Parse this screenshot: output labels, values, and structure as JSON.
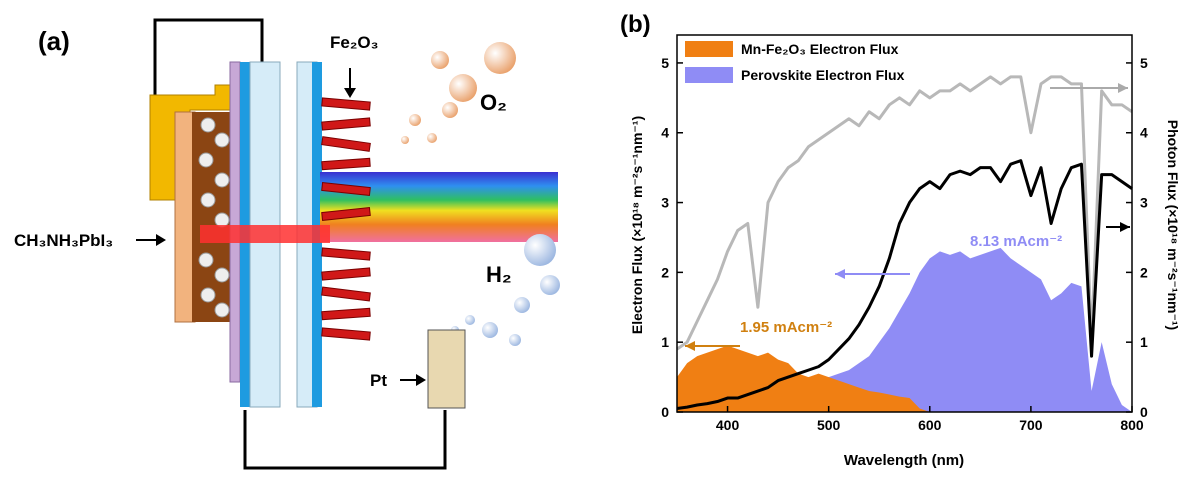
{
  "panel_a": {
    "label": "(a)",
    "fe2o3": "Fe₂O₃",
    "o2": "O₂",
    "h2": "H₂",
    "perovskite": "CH₃NH₃PbI₃",
    "pt": "Pt"
  },
  "chart_data": {
    "type": "line",
    "panel_label": "(b)",
    "x_label": "Wavelength (nm)",
    "y_label": "Electron Flux (×10¹⁸ m⁻²s⁻¹nm⁻¹)",
    "y2_label": "Photon Flux (×10¹⁸ m⁻²s⁻¹nm⁻¹)",
    "annotations": [
      "1.95 mAcm⁻²",
      "8.13 mAcm⁻²"
    ],
    "x": [
      350,
      360,
      370,
      380,
      390,
      400,
      410,
      420,
      430,
      440,
      450,
      460,
      470,
      480,
      490,
      500,
      510,
      520,
      530,
      540,
      550,
      560,
      570,
      580,
      590,
      600,
      610,
      620,
      630,
      640,
      650,
      660,
      670,
      680,
      690,
      700,
      710,
      720,
      730,
      740,
      750,
      760,
      770,
      780,
      790,
      800
    ],
    "xlim": [
      350,
      800
    ],
    "xticks": [
      400,
      500,
      600,
      700,
      800
    ],
    "ylim": [
      0,
      5.4
    ],
    "yticks": [
      0,
      1,
      2,
      3,
      4,
      5
    ],
    "y2lim": [
      0,
      5.4
    ],
    "y2ticks": [
      0,
      1,
      2,
      3,
      4,
      5
    ],
    "legend": "upper left",
    "series": [
      {
        "name": "Mn-Fe₂O₃ Electron Flux",
        "color": "#f07f13",
        "style": "area",
        "values": [
          0.5,
          0.7,
          0.8,
          0.85,
          0.9,
          0.95,
          0.9,
          0.85,
          0.8,
          0.85,
          0.75,
          0.7,
          0.55,
          0.5,
          0.55,
          0.5,
          0.45,
          0.4,
          0.35,
          0.3,
          0.28,
          0.25,
          0.22,
          0.2,
          0.05,
          0,
          0,
          0,
          0,
          0,
          0,
          0,
          0,
          0,
          0,
          0,
          0,
          0,
          0,
          0,
          0,
          0,
          0,
          0,
          0,
          0
        ]
      },
      {
        "name": "Perovskite Electron Flux",
        "color": "#8f8cf5",
        "style": "area",
        "values": [
          0.1,
          0.1,
          0.15,
          0.15,
          0.2,
          0.2,
          0.25,
          0.25,
          0.3,
          0.3,
          0.35,
          0.4,
          0.45,
          0.5,
          0.5,
          0.5,
          0.55,
          0.6,
          0.7,
          0.8,
          1.0,
          1.2,
          1.45,
          1.7,
          2.0,
          2.2,
          2.3,
          2.25,
          2.3,
          2.2,
          2.25,
          2.3,
          2.35,
          2.2,
          2.1,
          2.0,
          1.9,
          1.6,
          1.7,
          1.85,
          1.8,
          0.3,
          1.0,
          0.4,
          0.1,
          0
        ]
      },
      {
        "color": "#b8b8b8",
        "style": "line",
        "axis": "y2",
        "values": [
          0.9,
          1.0,
          1.3,
          1.6,
          1.9,
          2.3,
          2.6,
          2.7,
          1.5,
          3.0,
          3.3,
          3.5,
          3.6,
          3.8,
          3.9,
          4.0,
          4.1,
          4.2,
          4.1,
          4.3,
          4.2,
          4.4,
          4.5,
          4.4,
          4.6,
          4.5,
          4.6,
          4.6,
          4.7,
          4.6,
          4.7,
          4.8,
          4.7,
          4.8,
          4.8,
          4.0,
          4.7,
          4.8,
          4.8,
          4.7,
          4.7,
          1.0,
          4.6,
          4.4,
          4.4,
          4.3
        ]
      },
      {
        "color": "#000000",
        "style": "line",
        "axis": "y2",
        "values": [
          0.05,
          0.07,
          0.1,
          0.12,
          0.15,
          0.2,
          0.2,
          0.25,
          0.3,
          0.35,
          0.45,
          0.5,
          0.55,
          0.6,
          0.65,
          0.75,
          0.9,
          1.05,
          1.25,
          1.5,
          1.8,
          2.2,
          2.7,
          3.0,
          3.2,
          3.3,
          3.2,
          3.4,
          3.45,
          3.4,
          3.5,
          3.5,
          3.3,
          3.55,
          3.6,
          3.1,
          3.5,
          2.7,
          3.2,
          3.5,
          3.55,
          0.8,
          3.4,
          3.4,
          3.3,
          3.2
        ]
      }
    ]
  }
}
